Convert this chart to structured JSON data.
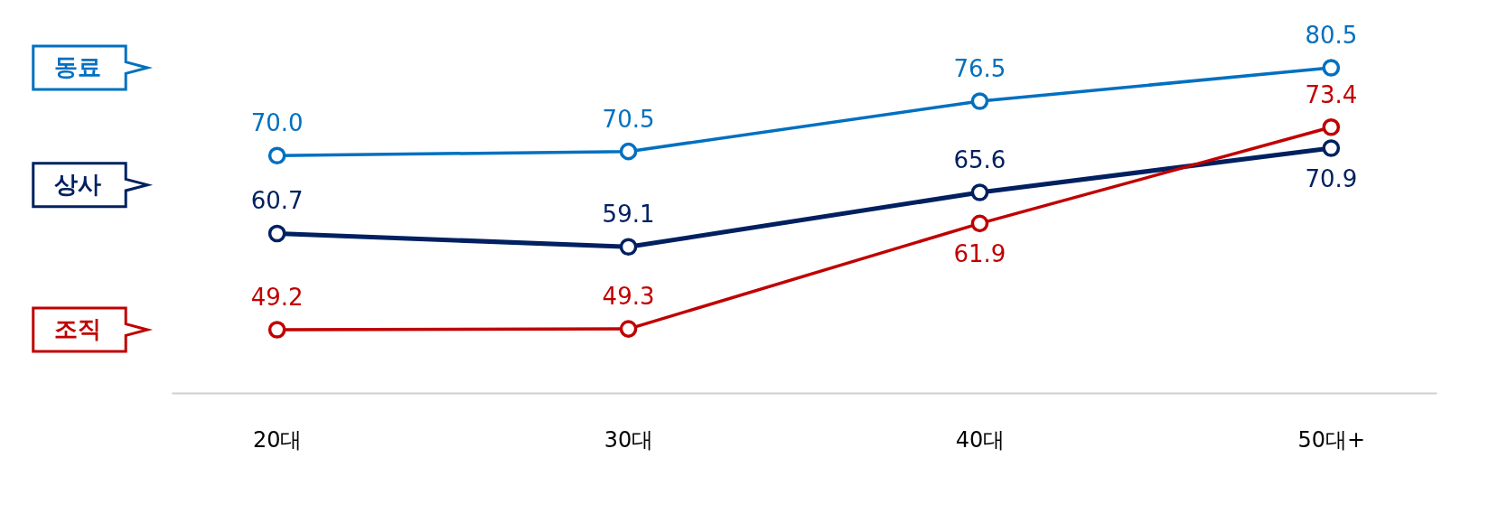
{
  "chart_data": {
    "type": "line",
    "categories": [
      "20대",
      "30대",
      "40대",
      "50대+"
    ],
    "series": [
      {
        "name": "동료",
        "color": "#0070c0",
        "values": [
          70.0,
          70.5,
          76.5,
          80.5
        ],
        "value_labels": [
          "70.0",
          "70.5",
          "76.5",
          "80.5"
        ]
      },
      {
        "name": "상사",
        "color": "#002060",
        "values": [
          60.7,
          59.1,
          65.6,
          70.9
        ],
        "value_labels": [
          "60.7",
          "59.1",
          "65.6",
          "70.9"
        ]
      },
      {
        "name": "조직",
        "color": "#c00000",
        "values": [
          49.2,
          49.3,
          61.9,
          73.4
        ],
        "value_labels": [
          "49.2",
          "49.3",
          "61.9",
          "73.4"
        ]
      }
    ],
    "tick_labels": "x",
    "grid": false,
    "marker": "circle",
    "line_style": "solid"
  }
}
